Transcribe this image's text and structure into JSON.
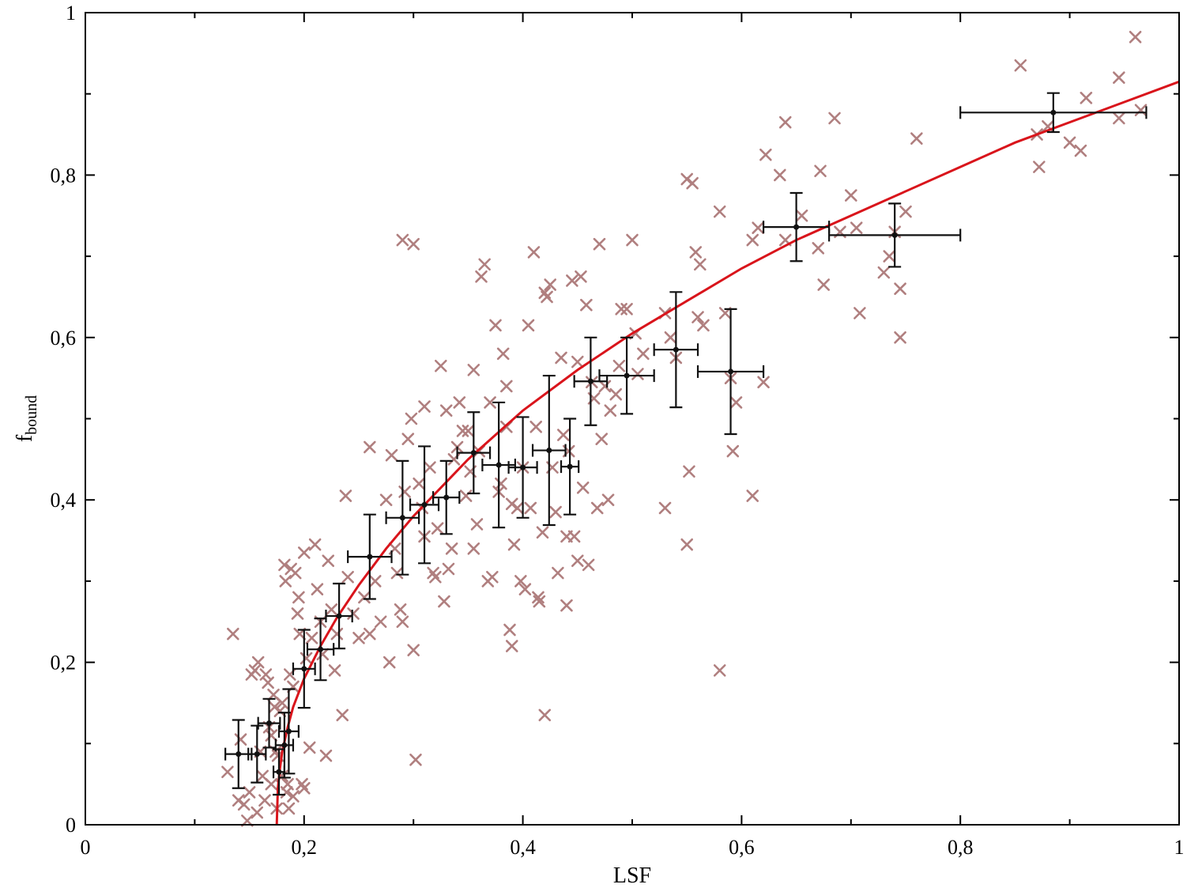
{
  "chart_data": {
    "type": "scatter",
    "xlabel": "LSF",
    "ylabel": {
      "main": "f",
      "subscript": "bound"
    },
    "xlim": [
      0,
      1
    ],
    "ylim": [
      0,
      1
    ],
    "x_major_ticks": [
      0,
      0.2,
      0.4,
      0.6,
      0.8,
      1
    ],
    "x_tick_labels": [
      "0",
      "0,2",
      "0,4",
      "0,6",
      "0,8",
      "1"
    ],
    "x_minor_ticks": [
      0.1,
      0.3,
      0.5,
      0.7,
      0.9
    ],
    "y_major_ticks": [
      0,
      0.2,
      0.4,
      0.6,
      0.8,
      1
    ],
    "y_tick_labels": [
      "0",
      "0,2",
      "0,4",
      "0,6",
      "0,8",
      "1"
    ],
    "y_minor_ticks": [
      0.1,
      0.3,
      0.5,
      0.7,
      0.9
    ],
    "grid": false,
    "legend": "none",
    "colors": {
      "scatter": "#b07f7f",
      "errorbar": "#111111",
      "fit": "#d9141b",
      "axes": "#000000"
    },
    "series": [
      {
        "kind": "scatter",
        "marker": "x",
        "points": [
          [
            0.13,
            0.065
          ],
          [
            0.135,
            0.235
          ],
          [
            0.14,
            0.03
          ],
          [
            0.142,
            0.105
          ],
          [
            0.145,
            0.025
          ],
          [
            0.148,
            0.005
          ],
          [
            0.15,
            0.04
          ],
          [
            0.152,
            0.185
          ],
          [
            0.155,
            0.19
          ],
          [
            0.157,
            0.015
          ],
          [
            0.158,
            0.2
          ],
          [
            0.16,
            0.09
          ],
          [
            0.162,
            0.06
          ],
          [
            0.164,
            0.03
          ],
          [
            0.165,
            0.185
          ],
          [
            0.167,
            0.175
          ],
          [
            0.168,
            0.12
          ],
          [
            0.17,
            0.11
          ],
          [
            0.17,
            0.05
          ],
          [
            0.172,
            0.16
          ],
          [
            0.173,
            0.145
          ],
          [
            0.174,
            0.09
          ],
          [
            0.175,
            0.02
          ],
          [
            0.176,
            0.085
          ],
          [
            0.178,
            0.14
          ],
          [
            0.18,
            0.15
          ],
          [
            0.18,
            0.06
          ],
          [
            0.182,
            0.32
          ],
          [
            0.183,
            0.3
          ],
          [
            0.184,
            0.04
          ],
          [
            0.185,
            0.05
          ],
          [
            0.186,
            0.02
          ],
          [
            0.187,
            0.185
          ],
          [
            0.188,
            0.315
          ],
          [
            0.19,
            0.17
          ],
          [
            0.19,
            0.035
          ],
          [
            0.192,
            0.31
          ],
          [
            0.194,
            0.26
          ],
          [
            0.195,
            0.28
          ],
          [
            0.196,
            0.235
          ],
          [
            0.198,
            0.05
          ],
          [
            0.2,
            0.045
          ],
          [
            0.2,
            0.335
          ],
          [
            0.202,
            0.205
          ],
          [
            0.205,
            0.095
          ],
          [
            0.207,
            0.23
          ],
          [
            0.21,
            0.345
          ],
          [
            0.212,
            0.29
          ],
          [
            0.215,
            0.25
          ],
          [
            0.217,
            0.21
          ],
          [
            0.22,
            0.085
          ],
          [
            0.222,
            0.325
          ],
          [
            0.225,
            0.265
          ],
          [
            0.228,
            0.19
          ],
          [
            0.23,
            0.235
          ],
          [
            0.235,
            0.135
          ],
          [
            0.238,
            0.405
          ],
          [
            0.24,
            0.305
          ],
          [
            0.245,
            0.26
          ],
          [
            0.25,
            0.23
          ],
          [
            0.255,
            0.28
          ],
          [
            0.26,
            0.235
          ],
          [
            0.26,
            0.465
          ],
          [
            0.265,
            0.3
          ],
          [
            0.27,
            0.25
          ],
          [
            0.275,
            0.4
          ],
          [
            0.278,
            0.2
          ],
          [
            0.28,
            0.455
          ],
          [
            0.283,
            0.34
          ],
          [
            0.285,
            0.31
          ],
          [
            0.288,
            0.265
          ],
          [
            0.29,
            0.25
          ],
          [
            0.29,
            0.72
          ],
          [
            0.292,
            0.41
          ],
          [
            0.295,
            0.475
          ],
          [
            0.298,
            0.5
          ],
          [
            0.3,
            0.715
          ],
          [
            0.3,
            0.215
          ],
          [
            0.302,
            0.08
          ],
          [
            0.305,
            0.42
          ],
          [
            0.308,
            0.39
          ],
          [
            0.31,
            0.355
          ],
          [
            0.31,
            0.515
          ],
          [
            0.315,
            0.44
          ],
          [
            0.318,
            0.31
          ],
          [
            0.32,
            0.305
          ],
          [
            0.322,
            0.365
          ],
          [
            0.325,
            0.565
          ],
          [
            0.328,
            0.275
          ],
          [
            0.33,
            0.51
          ],
          [
            0.332,
            0.315
          ],
          [
            0.335,
            0.34
          ],
          [
            0.337,
            0.45
          ],
          [
            0.34,
            0.465
          ],
          [
            0.342,
            0.52
          ],
          [
            0.345,
            0.485
          ],
          [
            0.348,
            0.405
          ],
          [
            0.35,
            0.485
          ],
          [
            0.352,
            0.435
          ],
          [
            0.355,
            0.56
          ],
          [
            0.355,
            0.34
          ],
          [
            0.358,
            0.37
          ],
          [
            0.36,
            0.46
          ],
          [
            0.362,
            0.675
          ],
          [
            0.365,
            0.69
          ],
          [
            0.368,
            0.3
          ],
          [
            0.37,
            0.52
          ],
          [
            0.372,
            0.305
          ],
          [
            0.375,
            0.615
          ],
          [
            0.378,
            0.41
          ],
          [
            0.38,
            0.42
          ],
          [
            0.382,
            0.58
          ],
          [
            0.385,
            0.54
          ],
          [
            0.385,
            0.49
          ],
          [
            0.388,
            0.24
          ],
          [
            0.39,
            0.22
          ],
          [
            0.39,
            0.395
          ],
          [
            0.392,
            0.345
          ],
          [
            0.395,
            0.39
          ],
          [
            0.398,
            0.3
          ],
          [
            0.4,
            0.44
          ],
          [
            0.402,
            0.29
          ],
          [
            0.405,
            0.615
          ],
          [
            0.407,
            0.39
          ],
          [
            0.41,
            0.705
          ],
          [
            0.412,
            0.49
          ],
          [
            0.414,
            0.28
          ],
          [
            0.415,
            0.275
          ],
          [
            0.418,
            0.36
          ],
          [
            0.42,
            0.655
          ],
          [
            0.42,
            0.135
          ],
          [
            0.422,
            0.65
          ],
          [
            0.425,
            0.665
          ],
          [
            0.427,
            0.44
          ],
          [
            0.43,
            0.385
          ],
          [
            0.432,
            0.31
          ],
          [
            0.435,
            0.575
          ],
          [
            0.437,
            0.48
          ],
          [
            0.44,
            0.355
          ],
          [
            0.44,
            0.27
          ],
          [
            0.442,
            0.46
          ],
          [
            0.445,
            0.67
          ],
          [
            0.447,
            0.355
          ],
          [
            0.45,
            0.57
          ],
          [
            0.45,
            0.325
          ],
          [
            0.453,
            0.675
          ],
          [
            0.455,
            0.415
          ],
          [
            0.458,
            0.64
          ],
          [
            0.46,
            0.32
          ],
          [
            0.463,
            0.545
          ],
          [
            0.465,
            0.525
          ],
          [
            0.468,
            0.39
          ],
          [
            0.47,
            0.715
          ],
          [
            0.472,
            0.475
          ],
          [
            0.475,
            0.54
          ],
          [
            0.478,
            0.4
          ],
          [
            0.48,
            0.51
          ],
          [
            0.485,
            0.53
          ],
          [
            0.488,
            0.565
          ],
          [
            0.49,
            0.635
          ],
          [
            0.495,
            0.635
          ],
          [
            0.5,
            0.72
          ],
          [
            0.503,
            0.605
          ],
          [
            0.505,
            0.555
          ],
          [
            0.51,
            0.58
          ],
          [
            0.53,
            0.63
          ],
          [
            0.53,
            0.39
          ],
          [
            0.535,
            0.6
          ],
          [
            0.54,
            0.575
          ],
          [
            0.55,
            0.795
          ],
          [
            0.55,
            0.345
          ],
          [
            0.552,
            0.435
          ],
          [
            0.555,
            0.79
          ],
          [
            0.558,
            0.705
          ],
          [
            0.56,
            0.625
          ],
          [
            0.562,
            0.69
          ],
          [
            0.565,
            0.615
          ],
          [
            0.58,
            0.755
          ],
          [
            0.58,
            0.19
          ],
          [
            0.585,
            0.63
          ],
          [
            0.59,
            0.55
          ],
          [
            0.595,
            0.52
          ],
          [
            0.592,
            0.46
          ],
          [
            0.61,
            0.72
          ],
          [
            0.61,
            0.405
          ],
          [
            0.615,
            0.735
          ],
          [
            0.62,
            0.545
          ],
          [
            0.622,
            0.825
          ],
          [
            0.635,
            0.8
          ],
          [
            0.64,
            0.865
          ],
          [
            0.64,
            0.72
          ],
          [
            0.655,
            0.75
          ],
          [
            0.67,
            0.71
          ],
          [
            0.672,
            0.805
          ],
          [
            0.675,
            0.665
          ],
          [
            0.685,
            0.87
          ],
          [
            0.69,
            0.73
          ],
          [
            0.7,
            0.775
          ],
          [
            0.705,
            0.735
          ],
          [
            0.708,
            0.63
          ],
          [
            0.73,
            0.68
          ],
          [
            0.735,
            0.7
          ],
          [
            0.74,
            0.73
          ],
          [
            0.745,
            0.66
          ],
          [
            0.745,
            0.6
          ],
          [
            0.75,
            0.755
          ],
          [
            0.76,
            0.845
          ],
          [
            0.855,
            0.935
          ],
          [
            0.87,
            0.85
          ],
          [
            0.872,
            0.81
          ],
          [
            0.88,
            0.86
          ],
          [
            0.9,
            0.84
          ],
          [
            0.91,
            0.83
          ],
          [
            0.915,
            0.895
          ],
          [
            0.945,
            0.87
          ],
          [
            0.945,
            0.92
          ],
          [
            0.96,
            0.97
          ],
          [
            0.965,
            0.88
          ]
        ]
      },
      {
        "kind": "errorbars",
        "points": [
          {
            "x": 0.14,
            "y": 0.087,
            "xerr": 0.012,
            "yerr": 0.042
          },
          {
            "x": 0.157,
            "y": 0.087,
            "xerr": 0.008,
            "yerr": 0.035
          },
          {
            "x": 0.168,
            "y": 0.125,
            "xerr": 0.01,
            "yerr": 0.03
          },
          {
            "x": 0.177,
            "y": 0.065,
            "xerr": 0.005,
            "yerr": 0.028
          },
          {
            "x": 0.182,
            "y": 0.098,
            "xerr": 0.008,
            "yerr": 0.04
          },
          {
            "x": 0.186,
            "y": 0.115,
            "xerr": 0.009,
            "yerr": 0.052
          },
          {
            "x": 0.2,
            "y": 0.192,
            "xerr": 0.01,
            "yerr": 0.048
          },
          {
            "x": 0.215,
            "y": 0.216,
            "xerr": 0.012,
            "yerr": 0.038
          },
          {
            "x": 0.232,
            "y": 0.257,
            "xerr": 0.012,
            "yerr": 0.04
          },
          {
            "x": 0.26,
            "y": 0.33,
            "xerr": 0.02,
            "yerr": 0.052
          },
          {
            "x": 0.29,
            "y": 0.378,
            "xerr": 0.015,
            "yerr": 0.07
          },
          {
            "x": 0.31,
            "y": 0.394,
            "xerr": 0.013,
            "yerr": 0.072
          },
          {
            "x": 0.33,
            "y": 0.403,
            "xerr": 0.012,
            "yerr": 0.045
          },
          {
            "x": 0.355,
            "y": 0.458,
            "xerr": 0.015,
            "yerr": 0.05
          },
          {
            "x": 0.378,
            "y": 0.443,
            "xerr": 0.015,
            "yerr": 0.077
          },
          {
            "x": 0.4,
            "y": 0.44,
            "xerr": 0.013,
            "yerr": 0.062
          },
          {
            "x": 0.424,
            "y": 0.461,
            "xerr": 0.015,
            "yerr": 0.092
          },
          {
            "x": 0.443,
            "y": 0.441,
            "xerr": 0.008,
            "yerr": 0.059
          },
          {
            "x": 0.462,
            "y": 0.546,
            "xerr": 0.015,
            "yerr": 0.054
          },
          {
            "x": 0.495,
            "y": 0.553,
            "xerr": 0.025,
            "yerr": 0.047
          },
          {
            "x": 0.54,
            "y": 0.585,
            "xerr": 0.02,
            "yerr": 0.071
          },
          {
            "x": 0.59,
            "y": 0.558,
            "xerr": 0.03,
            "yerr": 0.077
          },
          {
            "x": 0.65,
            "y": 0.736,
            "xerr": 0.03,
            "yerr": 0.042
          },
          {
            "x": 0.74,
            "y": 0.726,
            "xerr": 0.06,
            "yerr": 0.039
          },
          {
            "x": 0.885,
            "y": 0.877,
            "xerr": 0.085,
            "yerr": 0.024
          }
        ]
      },
      {
        "kind": "fit-line",
        "points": [
          [
            0.175,
            0.0
          ],
          [
            0.176,
            0.045
          ],
          [
            0.178,
            0.07
          ],
          [
            0.18,
            0.09
          ],
          [
            0.185,
            0.12
          ],
          [
            0.19,
            0.145
          ],
          [
            0.2,
            0.18
          ],
          [
            0.215,
            0.22
          ],
          [
            0.23,
            0.255
          ],
          [
            0.25,
            0.295
          ],
          [
            0.275,
            0.34
          ],
          [
            0.3,
            0.38
          ],
          [
            0.325,
            0.415
          ],
          [
            0.35,
            0.45
          ],
          [
            0.375,
            0.48
          ],
          [
            0.4,
            0.51
          ],
          [
            0.45,
            0.56
          ],
          [
            0.5,
            0.605
          ],
          [
            0.55,
            0.645
          ],
          [
            0.6,
            0.685
          ],
          [
            0.65,
            0.72
          ],
          [
            0.7,
            0.75
          ],
          [
            0.75,
            0.78
          ],
          [
            0.8,
            0.81
          ],
          [
            0.85,
            0.84
          ],
          [
            0.9,
            0.865
          ],
          [
            0.95,
            0.89
          ],
          [
            1.0,
            0.915
          ]
        ]
      }
    ]
  }
}
